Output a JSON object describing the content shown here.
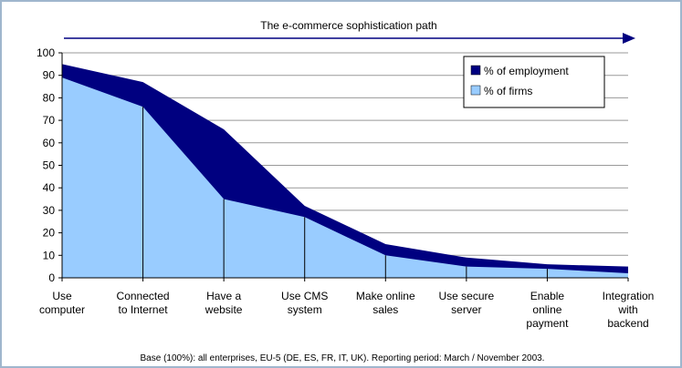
{
  "chart_data": {
    "type": "area",
    "title": "The e-commerce sophistication path",
    "note": "Base (100%): all enterprises, EU-5 (DE, ES, FR, IT, UK). Reporting period: March / November 2003.",
    "categories": [
      "Use\ncomputer",
      "Connected\nto Internet",
      "Have a\nwebsite",
      "Use CMS\nsystem",
      "Make online\nsales",
      "Use secure\nserver",
      "Enable\nonline\npayment",
      "Integration\nwith\nbackend"
    ],
    "series": [
      {
        "name": "% of employment",
        "color": "#000080",
        "values": [
          95,
          87,
          66,
          32,
          15,
          9,
          6,
          5
        ]
      },
      {
        "name": "% of firms",
        "color": "#99ccff",
        "values": [
          89,
          76,
          35,
          27,
          10,
          5,
          4,
          2
        ]
      }
    ],
    "ylim": [
      0,
      100
    ],
    "yticks": [
      0,
      10,
      20,
      30,
      40,
      50,
      60,
      70,
      80,
      90,
      100
    ],
    "grid": true,
    "legend": "upper right"
  }
}
